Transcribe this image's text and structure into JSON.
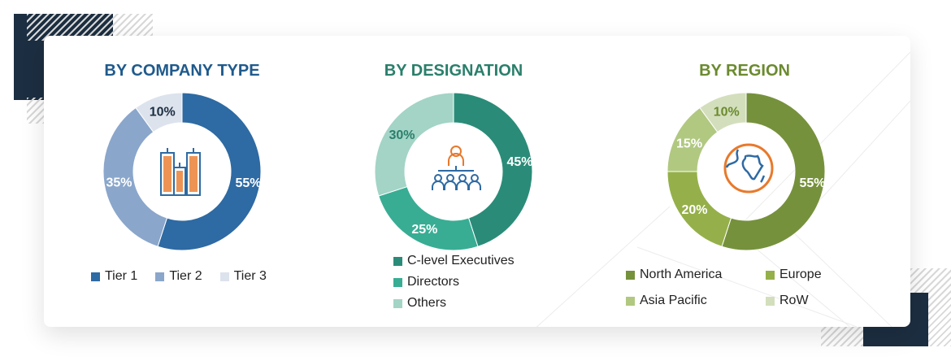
{
  "chart_data": [
    {
      "type": "pie",
      "title": "BY COMPANY TYPE",
      "title_color": "#1f5a8c",
      "categories": [
        "Tier 1",
        "Tier 2",
        "Tier 3"
      ],
      "values": [
        55,
        35,
        10
      ],
      "labels": [
        "55%",
        "35%",
        "10%"
      ],
      "colors": [
        "#2e6aa3",
        "#8aa6cb",
        "#dde3ed"
      ],
      "label_colors": [
        "#ffffff",
        "#ffffff",
        "#1c2e41"
      ],
      "center_icon": "buildings-icon",
      "legend": "bottom"
    },
    {
      "type": "pie",
      "title": "BY DESIGNATION",
      "title_color": "#2a7f6b",
      "categories": [
        "C-level Executives",
        "Directors",
        "Others"
      ],
      "values": [
        45,
        25,
        30
      ],
      "labels": [
        "45%",
        "25%",
        "30%"
      ],
      "colors": [
        "#2a8c78",
        "#38ad94",
        "#a3d4c6"
      ],
      "label_colors": [
        "#ffffff",
        "#ffffff",
        "#2a7f6b"
      ],
      "center_icon": "org-hierarchy-icon",
      "legend": "bottom"
    },
    {
      "type": "pie",
      "title": "BY REGION",
      "title_color": "#6b8a2f",
      "categories": [
        "North America",
        "Europe",
        "Asia Pacific",
        "RoW"
      ],
      "values": [
        55,
        20,
        15,
        10
      ],
      "labels": [
        "55%",
        "20%",
        "15%",
        "10%"
      ],
      "colors": [
        "#76913c",
        "#95b04a",
        "#b1c881",
        "#d3dfbc"
      ],
      "label_colors": [
        "#ffffff",
        "#ffffff",
        "#ffffff",
        "#6b8a2f"
      ],
      "center_icon": "globe-icon",
      "legend": "bottom"
    }
  ]
}
